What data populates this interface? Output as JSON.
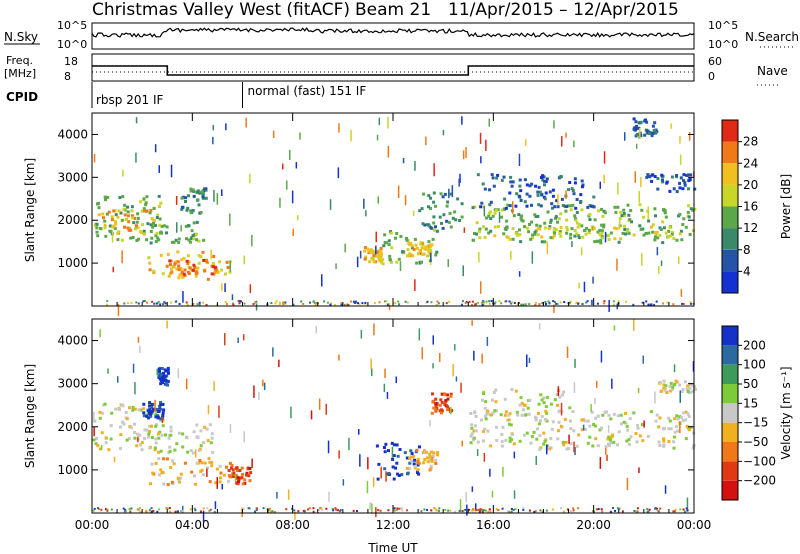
{
  "header": {
    "title": "Christmas Valley West (fitACF)",
    "beam": "Beam 21",
    "dates": "11/Apr/2015 – 12/Apr/2015"
  },
  "top_panels": {
    "nsky_label": "N.Sky",
    "nsky_ticks": [
      "10^5",
      "10^0"
    ],
    "nsearch_label": "N.Search",
    "nsearch_ticks": [
      "10^5",
      "10^0"
    ],
    "freq_label": "Freq.",
    "freq_unit": "[MHz]",
    "freq_ticks": [
      "18",
      "8"
    ],
    "nave_label": "Nave",
    "nave_ticks": [
      "60",
      "0"
    ],
    "cpid_label": "CPID",
    "cpid_programs": [
      {
        "name": "rbsp 201 IF",
        "start_hour": 0
      },
      {
        "name": "normal (fast) 151 IF",
        "start_hour": 6
      }
    ]
  },
  "chart_data": [
    {
      "type": "heatmap",
      "name": "power-panel",
      "ylabel": "Slant Range [km]",
      "xlabel": "",
      "x_range_hours": [
        0,
        24
      ],
      "ylim": [
        0,
        4500
      ],
      "y_ticks": [
        1000,
        2000,
        3000,
        4000
      ],
      "colorbar": {
        "label": "Power [dB]",
        "ticks": [
          "4",
          "8",
          "12",
          "16",
          "20",
          "24",
          "28"
        ],
        "colors": [
          "#1432d2",
          "#2454a8",
          "#3a8a6a",
          "#5ba84a",
          "#c8d62a",
          "#f0c020",
          "#f07a18",
          "#e02a14"
        ]
      },
      "regions": [
        {
          "t0": 0.0,
          "t1": 2.8,
          "r0": 1500,
          "r1": 2600,
          "level": 3
        },
        {
          "t0": 0.2,
          "t1": 2.5,
          "r0": 1700,
          "r1": 2300,
          "level": 5
        },
        {
          "t0": 2.0,
          "t1": 4.5,
          "r0": 1500,
          "r1": 2000,
          "level": 3
        },
        {
          "t0": 2.2,
          "t1": 5.5,
          "r0": 650,
          "r1": 1300,
          "level": 5
        },
        {
          "t0": 3.0,
          "t1": 5.0,
          "r0": 700,
          "r1": 1100,
          "level": 6
        },
        {
          "t0": 3.5,
          "t1": 4.5,
          "r0": 2200,
          "r1": 2800,
          "level": 2
        },
        {
          "t0": 10.8,
          "t1": 11.5,
          "r0": 1050,
          "r1": 1400,
          "level": 5
        },
        {
          "t0": 11.5,
          "t1": 13.8,
          "r0": 1000,
          "r1": 1800,
          "level": 3
        },
        {
          "t0": 12.5,
          "t1": 13.5,
          "r0": 1200,
          "r1": 1500,
          "level": 5
        },
        {
          "t0": 13.0,
          "t1": 14.8,
          "r0": 1800,
          "r1": 2700,
          "level": 2
        },
        {
          "t0": 15.0,
          "t1": 24.0,
          "r0": 1500,
          "r1": 2400,
          "level": 3
        },
        {
          "t0": 16.0,
          "t1": 24.0,
          "r0": 1600,
          "r1": 1900,
          "level": 4
        },
        {
          "t0": 15.3,
          "t1": 20.0,
          "r0": 2300,
          "r1": 3100,
          "level": 1
        },
        {
          "t0": 22.0,
          "t1": 24.0,
          "r0": 2700,
          "r1": 3100,
          "level": 1
        },
        {
          "t0": 21.5,
          "t1": 22.5,
          "r0": 4000,
          "r1": 4400,
          "level": 1
        }
      ]
    },
    {
      "type": "heatmap",
      "name": "velocity-panel",
      "ylabel": "Slant Range [km]",
      "xlabel": "Time UT",
      "x_range_hours": [
        0,
        24
      ],
      "x_ticks": [
        "00:00",
        "04:00",
        "08:00",
        "12:00",
        "16:00",
        "20:00",
        "00:00"
      ],
      "ylim": [
        0,
        4500
      ],
      "y_ticks": [
        1000,
        2000,
        3000,
        4000
      ],
      "colorbar": {
        "label": "Velocity [m s⁻¹]",
        "ticks": [
          "200",
          "100",
          "50",
          "15",
          "−15",
          "−50",
          "−100",
          "−200"
        ],
        "colors": [
          "#1432c8",
          "#2a6aa0",
          "#3c9a5a",
          "#7ccc3a",
          "#c8c8c8",
          "#f0b020",
          "#f07818",
          "#e03a14",
          "#d41010"
        ]
      },
      "regions": [
        {
          "t0": 0.0,
          "t1": 2.8,
          "r0": 1500,
          "r1": 2600,
          "level": 4
        },
        {
          "t0": 2.0,
          "t1": 4.8,
          "r0": 1400,
          "r1": 2100,
          "level": 4
        },
        {
          "t0": 2.2,
          "t1": 5.6,
          "r0": 650,
          "r1": 1300,
          "level": 5
        },
        {
          "t0": 5.4,
          "t1": 6.3,
          "r0": 700,
          "r1": 1100,
          "level": 7
        },
        {
          "t0": 2.0,
          "t1": 2.8,
          "r0": 2200,
          "r1": 2600,
          "level": 0
        },
        {
          "t0": 2.6,
          "t1": 3.0,
          "r0": 3000,
          "r1": 3400,
          "level": 0
        },
        {
          "t0": 11.3,
          "t1": 13.0,
          "r0": 800,
          "r1": 1700,
          "level": 0
        },
        {
          "t0": 12.5,
          "t1": 13.8,
          "r0": 1000,
          "r1": 1500,
          "level": 5
        },
        {
          "t0": 13.5,
          "t1": 14.3,
          "r0": 2300,
          "r1": 2800,
          "level": 7
        },
        {
          "t0": 15.0,
          "t1": 24.0,
          "r0": 1500,
          "r1": 2400,
          "level": 4
        },
        {
          "t0": 15.5,
          "t1": 19.0,
          "r0": 2300,
          "r1": 2900,
          "level": 4
        },
        {
          "t0": 22.5,
          "t1": 24.0,
          "r0": 2800,
          "r1": 3100,
          "level": 4
        }
      ]
    }
  ]
}
